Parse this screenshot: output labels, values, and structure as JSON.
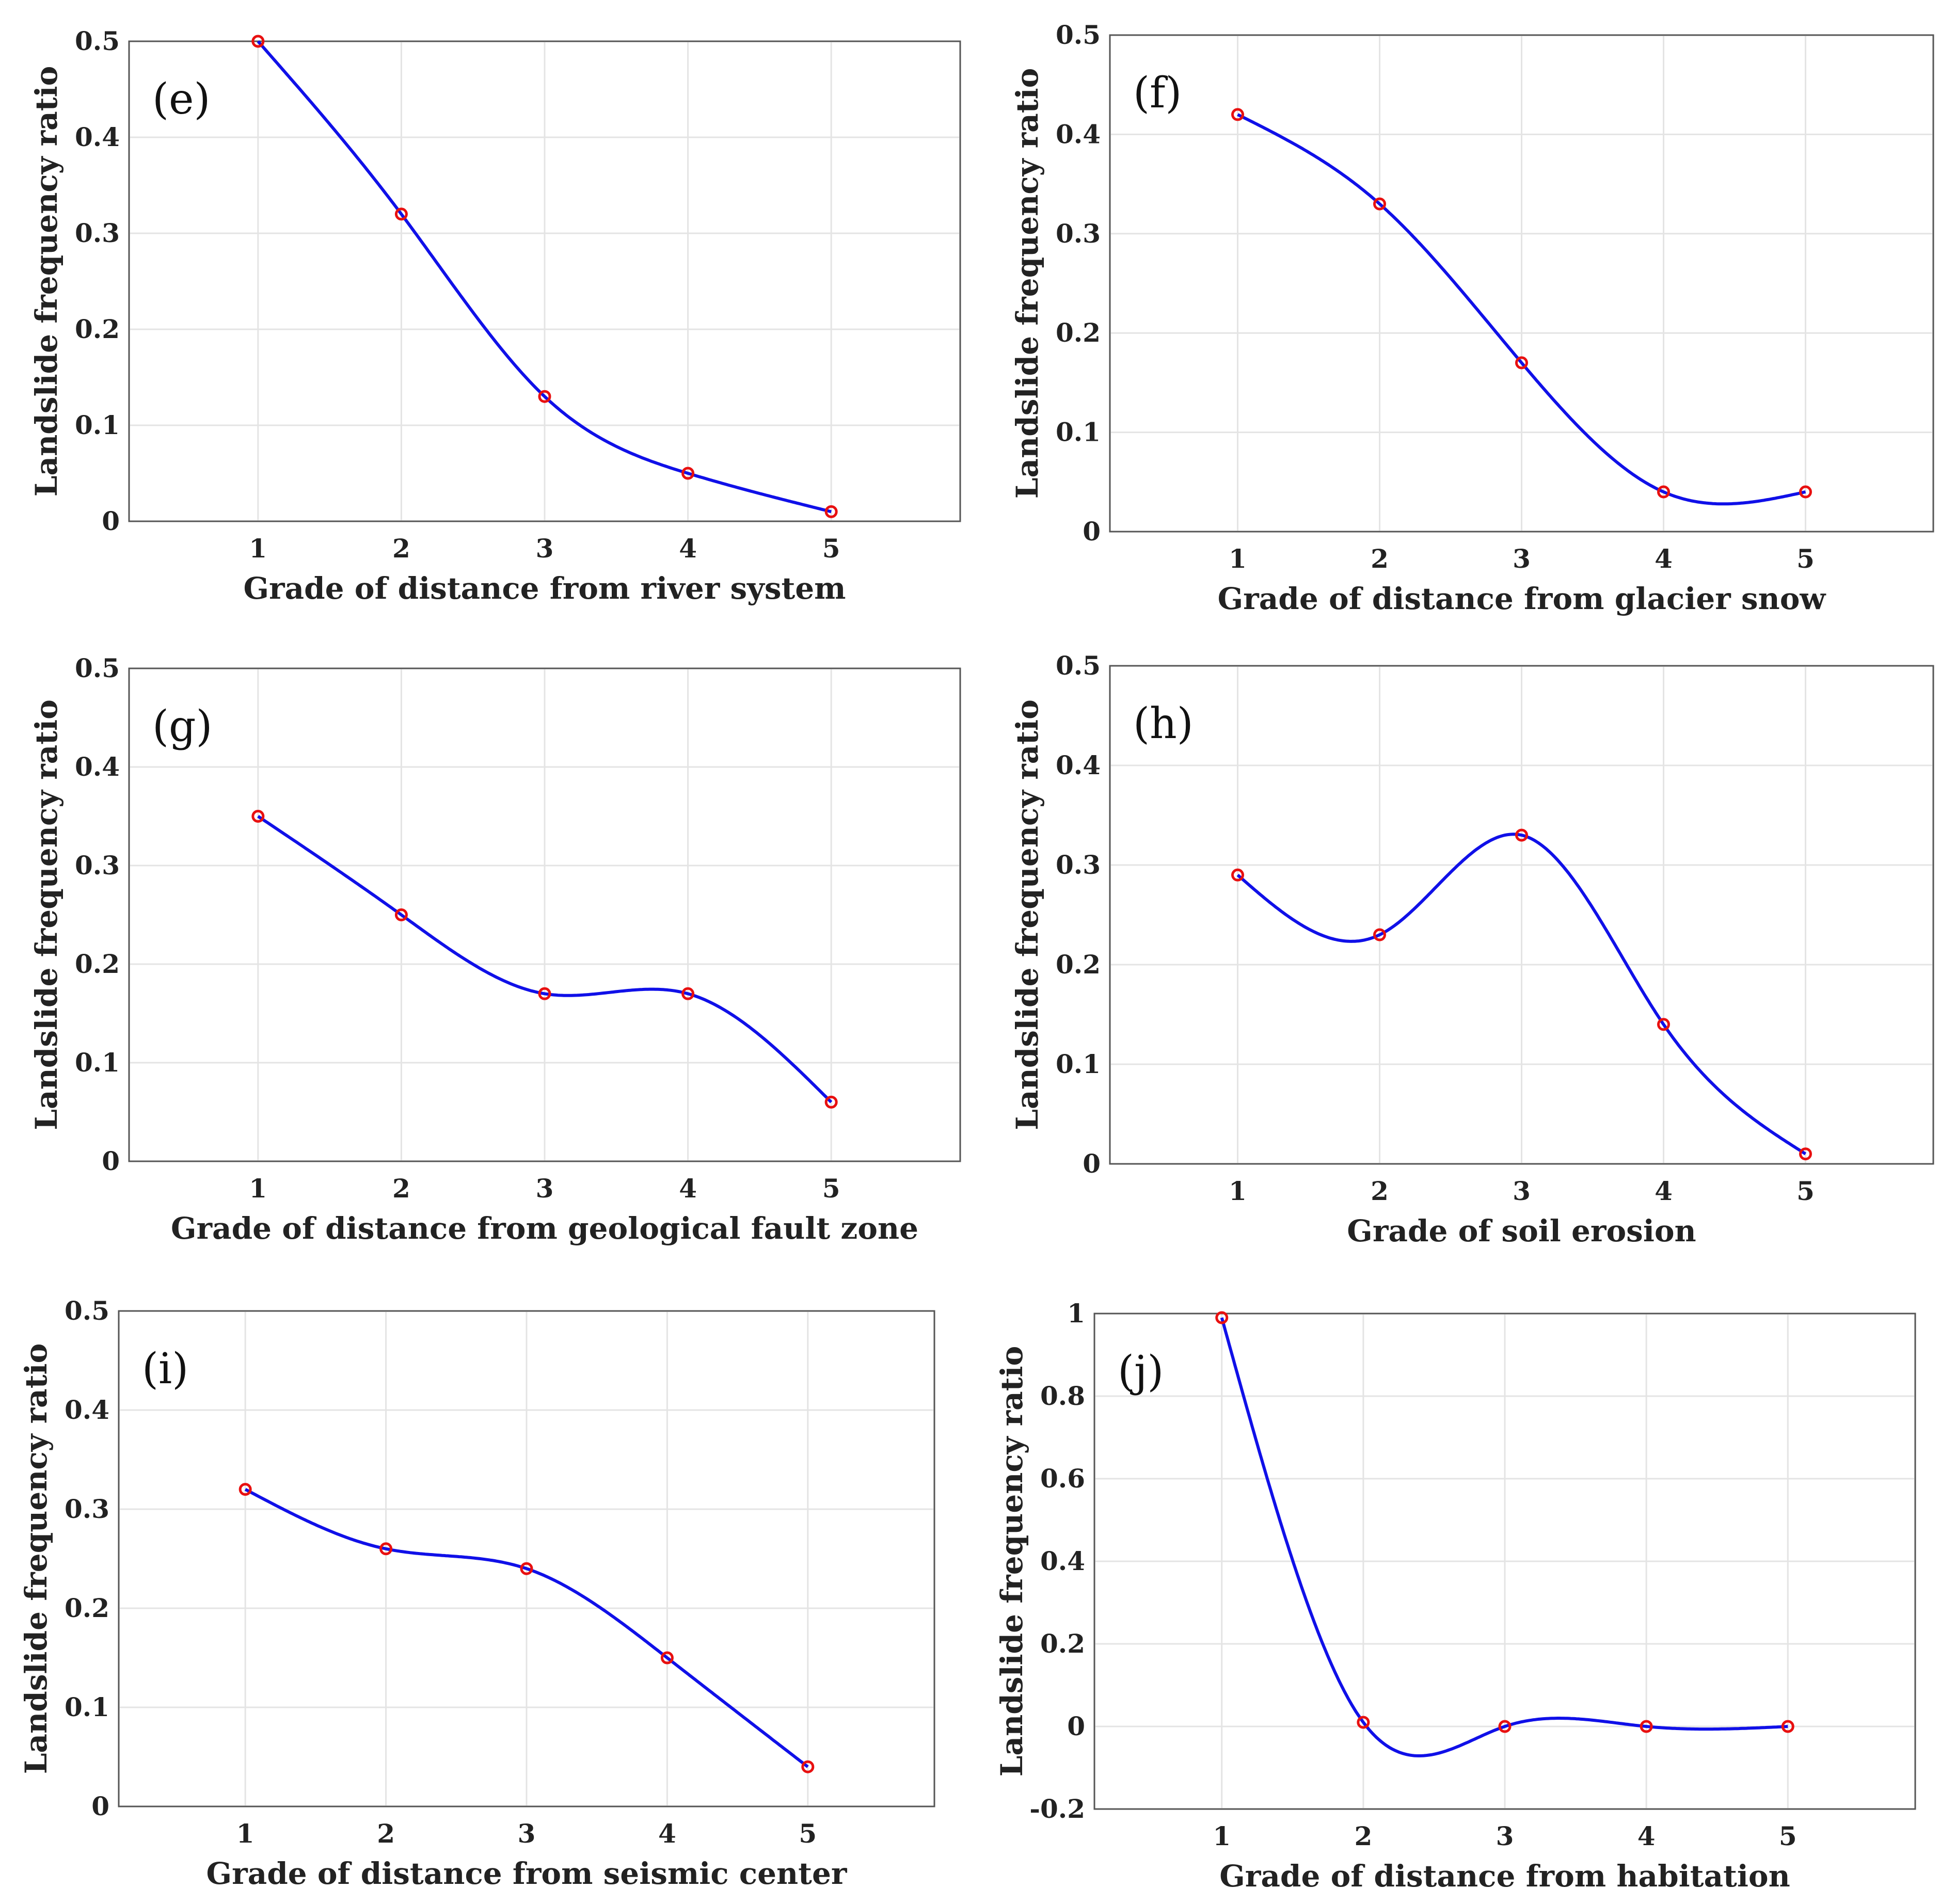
{
  "chart_data": [
    {
      "type": "line",
      "panel_label": "(e)",
      "title": "",
      "xlabel": "Grade of distance from river system",
      "ylabel": "Landslide frequency ratio",
      "x": [
        1,
        2,
        3,
        4,
        5
      ],
      "values": [
        0.5,
        0.32,
        0.13,
        0.05,
        0.01
      ],
      "xlim": [
        0.1,
        5.9
      ],
      "ylim": [
        0,
        0.5
      ],
      "xticks": [
        "1",
        "2",
        "3",
        "4",
        "5"
      ],
      "yticks": [
        "0",
        "0.1",
        "0.2",
        "0.3",
        "0.4",
        "0.5"
      ],
      "grid": true,
      "line_color": "#1010e8",
      "marker_color": "#e81010"
    },
    {
      "type": "line",
      "panel_label": "(f)",
      "title": "",
      "xlabel": "Grade of distance from glacier snow",
      "ylabel": "Landslide frequency ratio",
      "x": [
        1,
        2,
        3,
        4,
        5
      ],
      "values": [
        0.42,
        0.33,
        0.17,
        0.04,
        0.04
      ],
      "xlim": [
        0.1,
        5.9
      ],
      "ylim": [
        0,
        0.5
      ],
      "xticks": [
        "1",
        "2",
        "3",
        "4",
        "5"
      ],
      "yticks": [
        "0",
        "0.1",
        "0.2",
        "0.3",
        "0.4",
        "0.5"
      ],
      "grid": true,
      "line_color": "#1010e8",
      "marker_color": "#e81010"
    },
    {
      "type": "line",
      "panel_label": "(g)",
      "title": "",
      "xlabel": "Grade of distance from geological fault zone",
      "ylabel": "Landslide frequency ratio",
      "x": [
        1,
        2,
        3,
        4,
        5
      ],
      "values": [
        0.35,
        0.25,
        0.17,
        0.17,
        0.06
      ],
      "xlim": [
        0.1,
        5.9
      ],
      "ylim": [
        0,
        0.5
      ],
      "xticks": [
        "1",
        "2",
        "3",
        "4",
        "5"
      ],
      "yticks": [
        "0",
        "0.1",
        "0.2",
        "0.3",
        "0.4",
        "0.5"
      ],
      "grid": true,
      "line_color": "#1010e8",
      "marker_color": "#e81010"
    },
    {
      "type": "line",
      "panel_label": "(h)",
      "title": "",
      "xlabel": "Grade of soil erosion",
      "ylabel": "Landslide frequency ratio",
      "x": [
        1,
        2,
        3,
        4,
        5
      ],
      "values": [
        0.29,
        0.23,
        0.33,
        0.14,
        0.01
      ],
      "xlim": [
        0.1,
        5.9
      ],
      "ylim": [
        0,
        0.5
      ],
      "xticks": [
        "1",
        "2",
        "3",
        "4",
        "5"
      ],
      "yticks": [
        "0",
        "0.1",
        "0.2",
        "0.3",
        "0.4",
        "0.5"
      ],
      "grid": true,
      "line_color": "#1010e8",
      "marker_color": "#e81010"
    },
    {
      "type": "line",
      "panel_label": "(i)",
      "title": "",
      "xlabel": "Grade of distance from seismic center",
      "ylabel": "Landslide frequency ratio",
      "x": [
        1,
        2,
        3,
        4,
        5
      ],
      "values": [
        0.32,
        0.26,
        0.24,
        0.15,
        0.04
      ],
      "xlim": [
        0.1,
        5.9
      ],
      "ylim": [
        0,
        0.5
      ],
      "xticks": [
        "1",
        "2",
        "3",
        "4",
        "5"
      ],
      "yticks": [
        "0",
        "0.1",
        "0.2",
        "0.3",
        "0.4",
        "0.5"
      ],
      "grid": true,
      "line_color": "#1010e8",
      "marker_color": "#e81010"
    },
    {
      "type": "line",
      "panel_label": "(j)",
      "title": "",
      "xlabel": "Grade of distance from habitation",
      "ylabel": "Landslide frequency ratio",
      "x": [
        1,
        2,
        3,
        4,
        5
      ],
      "values": [
        0.99,
        0.01,
        0.0,
        0.0,
        0.0
      ],
      "xlim": [
        0.1,
        5.9
      ],
      "ylim": [
        -0.2,
        1
      ],
      "xticks": [
        "1",
        "2",
        "3",
        "4",
        "5"
      ],
      "yticks": [
        "-0.2",
        "0",
        "0.2",
        "0.4",
        "0.6",
        "0.8",
        "1"
      ],
      "grid": true,
      "line_color": "#1010e8",
      "marker_color": "#e81010"
    }
  ]
}
